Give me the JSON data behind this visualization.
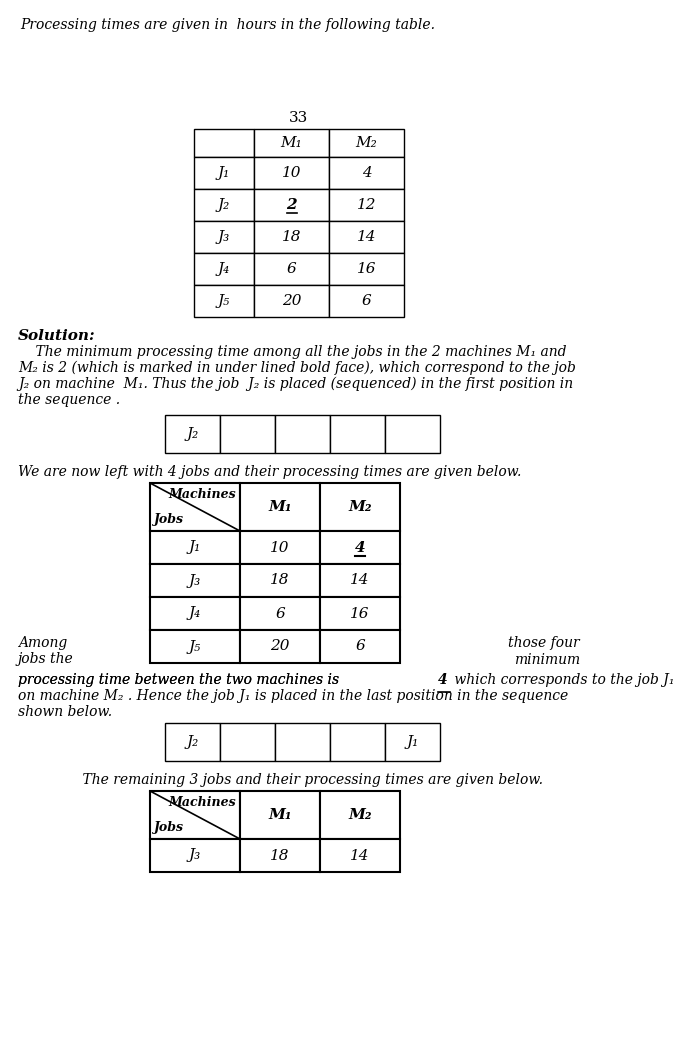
{
  "intro_text": "Processing times are given in  hours in the following table.",
  "page_number": "33",
  "table1": {
    "col_headers": [
      "M₁",
      "M₂"
    ],
    "rows": [
      {
        "job": "J₁",
        "m1": "10",
        "m2": "4",
        "m1_underline": false,
        "m2_underline": false
      },
      {
        "job": "J₂",
        "m1": "2",
        "m2": "12",
        "m1_underline": true,
        "m2_underline": false
      },
      {
        "job": "J₃",
        "m1": "18",
        "m2": "14",
        "m1_underline": false,
        "m2_underline": false
      },
      {
        "job": "J₄",
        "m1": "6",
        "m2": "16",
        "m1_underline": false,
        "m2_underline": false
      },
      {
        "job": "J₅",
        "m1": "20",
        "m2": "6",
        "m1_underline": false,
        "m2_underline": false
      }
    ]
  },
  "solution_header": "Solution:",
  "solution_text_lines": [
    "    The minimum processing time among all the jobs in the 2 machines M₁ and",
    "M₂ is 2 (which is marked in under lined bold face), which correspond to the job",
    "J₂ on machine  M₁. Thus the job  J₂ is placed (sequenced) in the first position in",
    "the sequence ."
  ],
  "seq1_cells": [
    "J₂",
    "",
    "",
    "",
    ""
  ],
  "between_text": "We are now left with 4 jobs and their processing times are given below.",
  "table2": {
    "col_headers": [
      "M₁",
      "M₂"
    ],
    "rows": [
      {
        "job": "J₁",
        "m1": "10",
        "m2": "4",
        "m1_underline": false,
        "m2_underline": true
      },
      {
        "job": "J₃",
        "m1": "18",
        "m2": "14",
        "m1_underline": false,
        "m2_underline": false
      },
      {
        "job": "J₄",
        "m1": "6",
        "m2": "16",
        "m1_underline": false,
        "m2_underline": false
      },
      {
        "job": "J₅",
        "m1": "20",
        "m2": "6",
        "m1_underline": false,
        "m2_underline": false
      }
    ]
  },
  "side_text_left_line1": "Among",
  "side_text_left_line2": "jobs the",
  "side_text_right_line1": "those four",
  "side_text_right_line2": "minimum",
  "after_table2_line1_before": "processing time between the two machines is ",
  "after_table2_line1_underlined": "4",
  "after_table2_line1_after": " which corresponds to the job J₁",
  "after_table2_line2": "on machine M₂ . Hence the job J₁ is placed in the last position in the sequence",
  "after_table2_line3": "shown below.",
  "seq2_cells": [
    "J₂",
    "",
    "",
    "",
    "J₁"
  ],
  "final_text": "    The remaining 3 jobs and their processing times are given below.",
  "table3": {
    "col_headers": [
      "M₁",
      "M₂"
    ],
    "rows": [
      {
        "job": "J₃",
        "m1": "18",
        "m2": "14",
        "m1_underline": false,
        "m2_underline": false
      }
    ]
  }
}
